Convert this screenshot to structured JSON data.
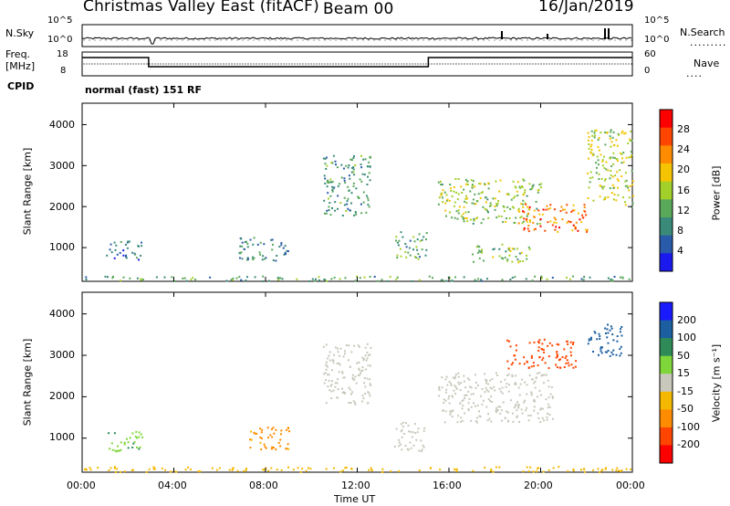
{
  "header": {
    "station": "Christmas Valley East (fitACF)",
    "beam": "Beam 00",
    "date": "16/Jan/2019"
  },
  "nsky_panel": {
    "left_label": "N.Sky",
    "right_label": "N.Search",
    "left_ticks": [
      "10^5",
      "10^0"
    ],
    "right_ticks": [
      "10^5",
      "10^0"
    ]
  },
  "freq_panel": {
    "left_label_1": "Freq.",
    "left_label_2": "[MHz]",
    "right_label": "Nave",
    "left_ticks": [
      "18",
      "8"
    ],
    "right_ticks": [
      "60",
      "0"
    ]
  },
  "cpid": {
    "label": "CPID",
    "text": "normal (fast) 151 RF"
  },
  "power_colorbar": {
    "label": "Power [dB]",
    "ticks": [
      "28",
      "24",
      "20",
      "16",
      "12",
      "8",
      "4"
    ],
    "colors": [
      "#ff0000",
      "#ff4500",
      "#ff8c00",
      "#f5c400",
      "#a3cf2a",
      "#5aa85a",
      "#3a8a7a",
      "#2a5aaa",
      "#1a1aee"
    ]
  },
  "velocity_colorbar": {
    "label": "Velocity [m s⁻¹]",
    "ticks": [
      "200",
      "100",
      "50",
      "15",
      "-15",
      "-50",
      "-100",
      "-200"
    ],
    "colors": [
      "#1a1aff",
      "#1b5fa0",
      "#2e8b57",
      "#7fd63a",
      "#c8c8bc",
      "#f5b800",
      "#ff8c00",
      "#ff4500",
      "#ff0000"
    ]
  },
  "x_axis": {
    "label": "Time UT",
    "ticks": [
      "00:00",
      "04:00",
      "08:00",
      "12:00",
      "16:00",
      "20:00",
      "00:00"
    ]
  },
  "chart_data": [
    {
      "type": "heatmap",
      "title": "",
      "xlabel": "",
      "ylabel": "Slant Range [km]",
      "xlim": [
        0,
        24
      ],
      "ylim": [
        200,
        4500
      ],
      "yticks": [
        "1000",
        "2000",
        "3000",
        "4000"
      ],
      "colorbar": "Power [dB]",
      "clim": [
        0,
        30
      ],
      "echo_regions": [
        {
          "t_start": 0.0,
          "t_end": 24.0,
          "r_min": 200,
          "r_max": 320,
          "level_db": 10
        },
        {
          "t_start": 1.0,
          "t_end": 2.6,
          "r_min": 720,
          "r_max": 1200,
          "level_db": 6
        },
        {
          "t_start": 6.8,
          "t_end": 9.0,
          "r_min": 700,
          "r_max": 1300,
          "level_db": 7
        },
        {
          "t_start": 10.5,
          "t_end": 12.6,
          "r_min": 1800,
          "r_max": 3300,
          "level_db": 9
        },
        {
          "t_start": 13.6,
          "t_end": 15.0,
          "r_min": 700,
          "r_max": 1400,
          "level_db": 10
        },
        {
          "t_start": 15.5,
          "t_end": 20.0,
          "r_min": 1600,
          "r_max": 2700,
          "level_db": 14
        },
        {
          "t_start": 17.0,
          "t_end": 19.5,
          "r_min": 650,
          "r_max": 1100,
          "level_db": 13
        },
        {
          "t_start": 19.0,
          "t_end": 22.0,
          "r_min": 1400,
          "r_max": 2100,
          "level_db": 24
        },
        {
          "t_start": 22.0,
          "t_end": 24.0,
          "r_min": 2000,
          "r_max": 3900,
          "level_db": 15
        }
      ]
    },
    {
      "type": "heatmap",
      "title": "",
      "xlabel": "Time UT",
      "ylabel": "Slant Range [km]",
      "xlim": [
        0,
        24
      ],
      "ylim": [
        200,
        4500
      ],
      "yticks": [
        "1000",
        "2000",
        "3000",
        "4000"
      ],
      "colorbar": "Velocity [m s⁻¹]",
      "clim": [
        -200,
        200
      ],
      "echo_regions": [
        {
          "t_start": 0.0,
          "t_end": 24.0,
          "r_min": 200,
          "r_max": 330,
          "velocity": -30
        },
        {
          "t_start": 1.0,
          "t_end": 2.6,
          "r_min": 700,
          "r_max": 1200,
          "velocity": 40
        },
        {
          "t_start": 7.2,
          "t_end": 9.0,
          "r_min": 700,
          "r_max": 1300,
          "velocity": -60
        },
        {
          "t_start": 10.5,
          "t_end": 12.6,
          "r_min": 1800,
          "r_max": 3300,
          "velocity": 0
        },
        {
          "t_start": 13.6,
          "t_end": 15.0,
          "r_min": 700,
          "r_max": 1400,
          "velocity": 0
        },
        {
          "t_start": 15.5,
          "t_end": 20.5,
          "r_min": 1400,
          "r_max": 2600,
          "velocity": 0
        },
        {
          "t_start": 18.5,
          "t_end": 21.5,
          "r_min": 2700,
          "r_max": 3400,
          "velocity": -180
        },
        {
          "t_start": 22.0,
          "t_end": 23.5,
          "r_min": 3000,
          "r_max": 3800,
          "velocity": 150
        }
      ]
    }
  ]
}
